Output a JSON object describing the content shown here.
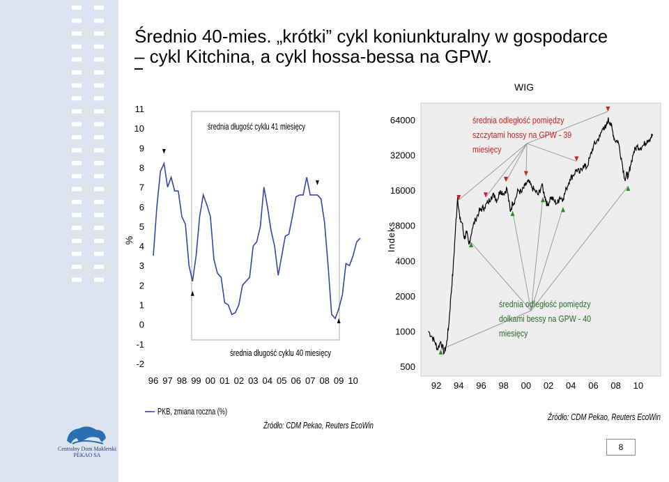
{
  "slide": {
    "title_line1": "Średnio 40-mies. „krótki” cykl koniunkturalny w gospodarce",
    "title_line2": "– cykl Kitchina, a cykl hossa-bessa na GPW.",
    "page_number": "8",
    "logo_text_line1": "Centralny Dom Maklerski",
    "logo_text_line2": "PEKAO SA"
  },
  "colors": {
    "sidebar": "#dde4f0",
    "dash": "#ffffff",
    "gdp_line": "#3344aa",
    "wig_line": "#000000",
    "peak_arrow": "#cc2222",
    "trough_arrow": "#2a8a2a",
    "annotation_text": "#cc2222",
    "annotation_text2": "#2a6a2a",
    "right_panel_bg": "#eeeeee"
  },
  "chart_data": [
    {
      "type": "line",
      "title": "",
      "ylabel": "%",
      "xlabel": "",
      "x_tick_labels": [
        "96",
        "97",
        "98",
        "99",
        "00",
        "01",
        "02",
        "03",
        "04",
        "05",
        "06",
        "07",
        "08",
        "09",
        "10"
      ],
      "y_tick_labels": [
        "-2",
        "-1",
        "0",
        "1",
        "2",
        "3",
        "4",
        "5",
        "6",
        "7",
        "8",
        "9",
        "10",
        "11"
      ],
      "ylim": [
        -2,
        11
      ],
      "xlim": [
        1996.0,
        2010.75
      ],
      "series": [
        {
          "name": "PKB, zmiana roczna (%)",
          "x": [
            1996.0,
            1996.25,
            1996.5,
            1996.75,
            1997.0,
            1997.25,
            1997.5,
            1997.75,
            1998.0,
            1998.25,
            1998.5,
            1998.75,
            1999.0,
            1999.25,
            1999.5,
            1999.75,
            2000.0,
            2000.25,
            2000.5,
            2000.75,
            2001.0,
            2001.25,
            2001.5,
            2001.75,
            2002.0,
            2002.25,
            2002.5,
            2002.75,
            2003.0,
            2003.25,
            2003.5,
            2003.75,
            2004.0,
            2004.25,
            2004.5,
            2004.75,
            2005.0,
            2005.25,
            2005.5,
            2005.75,
            2006.0,
            2006.25,
            2006.5,
            2006.75,
            2007.0,
            2007.25,
            2007.5,
            2007.75,
            2008.0,
            2008.25,
            2008.5,
            2008.75,
            2009.0,
            2009.25,
            2009.5,
            2009.75,
            2010.0,
            2010.25,
            2010.5
          ],
          "values": [
            3.5,
            6.0,
            7.8,
            8.2,
            7.0,
            7.5,
            6.8,
            6.8,
            5.5,
            5.1,
            3.0,
            2.2,
            3.5,
            5.5,
            6.6,
            6.1,
            5.5,
            3.3,
            2.6,
            2.4,
            1.1,
            1.0,
            0.5,
            0.6,
            1.0,
            2.0,
            2.2,
            2.4,
            4.0,
            4.2,
            5.0,
            7.0,
            6.0,
            4.8,
            4.0,
            2.5,
            3.5,
            4.5,
            4.6,
            5.5,
            6.5,
            6.6,
            6.6,
            7.5,
            6.6,
            6.6,
            6.6,
            6.4,
            5.2,
            3.0,
            0.5,
            0.3,
            0.8,
            1.5,
            3.1,
            3.0,
            3.5,
            4.2,
            4.4
          ]
        }
      ],
      "annotations": [
        {
          "text": "średnia długość cyklu 41 miesięcy"
        },
        {
          "text": "średnia długość cyklu 40 miesięcy"
        },
        {
          "text": "Źródło: CDM Pekao, Reuters EcoWin"
        }
      ],
      "peak_markers_x": [
        1996.75,
        2007.5
      ],
      "trough_markers_x": [
        1998.75,
        2009.0
      ]
    },
    {
      "type": "line",
      "title": "WIG",
      "ylabel": "Indeks",
      "xlabel": "",
      "yscale": "log",
      "x_tick_labels": [
        "92",
        "94",
        "96",
        "98",
        "00",
        "02",
        "04",
        "06",
        "08",
        "10"
      ],
      "y_tick_labels": [
        "500",
        "1000",
        "2000",
        "4000",
        "8000",
        "16000",
        "32000",
        "64000"
      ],
      "ylim": [
        500,
        64000
      ],
      "xlim": [
        1991.0,
        2011.5
      ],
      "series": [
        {
          "name": "WIG",
          "x": [
            1991.3,
            1991.6,
            1991.9,
            1992.1,
            1992.4,
            1992.7,
            1992.9,
            1993.1,
            1993.3,
            1993.5,
            1993.7,
            1993.9,
            1994.1,
            1994.3,
            1994.5,
            1994.7,
            1994.9,
            1995.2,
            1995.5,
            1995.8,
            1996.0,
            1996.3,
            1996.6,
            1996.9,
            1997.2,
            1997.4,
            1997.7,
            1998.0,
            1998.3,
            1998.6,
            1998.8,
            1999.0,
            1999.3,
            1999.6,
            1999.9,
            2000.2,
            2000.5,
            2000.8,
            2001.1,
            2001.4,
            2001.7,
            2001.9,
            2002.2,
            2002.5,
            2002.8,
            2003.0,
            2003.3,
            2003.6,
            2003.9,
            2004.2,
            2004.5,
            2004.8,
            2005.1,
            2005.4,
            2005.7,
            2006.0,
            2006.3,
            2006.6,
            2006.9,
            2007.1,
            2007.3,
            2007.5,
            2007.7,
            2007.9,
            2008.2,
            2008.5,
            2008.8,
            2009.0,
            2009.1,
            2009.3,
            2009.6,
            2009.9,
            2010.2,
            2010.5,
            2010.8,
            2011.1,
            2011.3
          ],
          "values": [
            1000,
            900,
            800,
            700,
            820,
            650,
            760,
            1100,
            2000,
            3400,
            7200,
            14000,
            9000,
            8400,
            6200,
            7000,
            5500,
            7500,
            9000,
            10500,
            11000,
            11500,
            12500,
            14200,
            14500,
            13000,
            16000,
            15000,
            16600,
            10500,
            12500,
            13000,
            16000,
            15300,
            17500,
            19000,
            17000,
            15800,
            14600,
            17800,
            14000,
            11800,
            14000,
            13000,
            12400,
            14000,
            13500,
            16500,
            20000,
            21500,
            24000,
            22500,
            26200,
            25000,
            30500,
            38000,
            42000,
            46500,
            56000,
            54000,
            64000,
            61000,
            52000,
            43000,
            42000,
            30000,
            20000,
            22000,
            20500,
            26000,
            34000,
            38000,
            37000,
            39000,
            43000,
            45000,
            48000
          ]
        }
      ],
      "annotations": [
        {
          "text": "średnia odległość pomiędzy szczytami hossy na GPW - 39 miesięcy"
        },
        {
          "text": "średnia odległość pomiędzy dołkami bessy na GPW - 40 miesięcy"
        },
        {
          "text": "Źródło: CDM Pekao, Reuters EcoWin"
        }
      ],
      "peak_markers_x": [
        1994.0,
        1996.4,
        1998.2,
        2000.0,
        2004.5,
        2007.3
      ],
      "trough_markers_x": [
        1992.4,
        1995.1,
        1998.8,
        2001.5,
        2003.3,
        2009.1
      ]
    }
  ]
}
